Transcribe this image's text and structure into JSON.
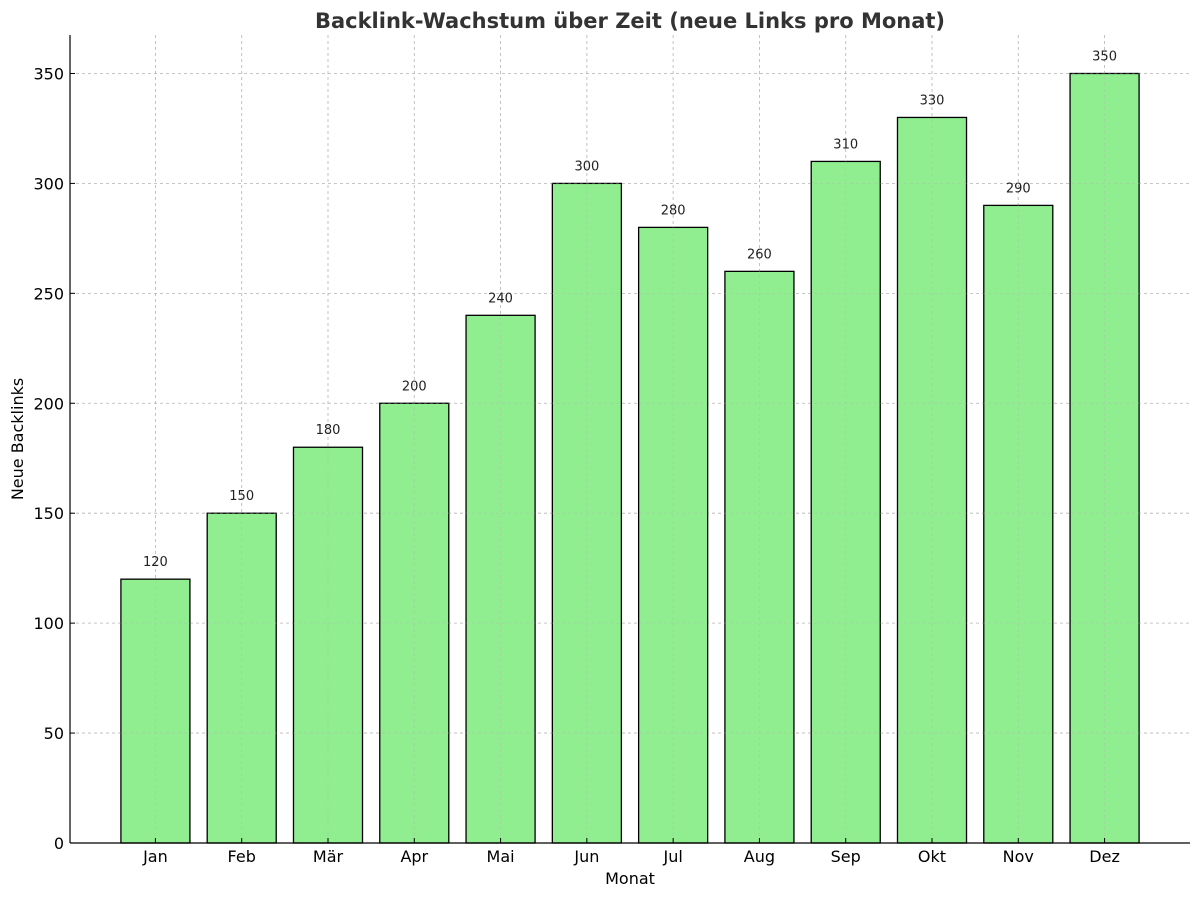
{
  "chart_data": {
    "type": "bar",
    "title": "Backlink-Wachstum über Zeit (neue Links pro Monat)",
    "xlabel": "Monat",
    "ylabel": "Neue Backlinks",
    "categories": [
      "Jan",
      "Feb",
      "Mär",
      "Apr",
      "Mai",
      "Jun",
      "Jul",
      "Aug",
      "Sep",
      "Okt",
      "Nov",
      "Dez"
    ],
    "values": [
      120,
      150,
      180,
      200,
      240,
      300,
      280,
      260,
      310,
      330,
      290,
      350
    ],
    "data_labels": [
      "120",
      "150",
      "180",
      "200",
      "240",
      "300",
      "280",
      "260",
      "310",
      "330",
      "290",
      "350"
    ],
    "yticks": [
      0,
      50,
      100,
      150,
      200,
      250,
      300,
      350
    ],
    "ylim": [
      0,
      367.5
    ],
    "grid": true,
    "bar_color": "#90EE90",
    "edge_color": "#000000"
  }
}
